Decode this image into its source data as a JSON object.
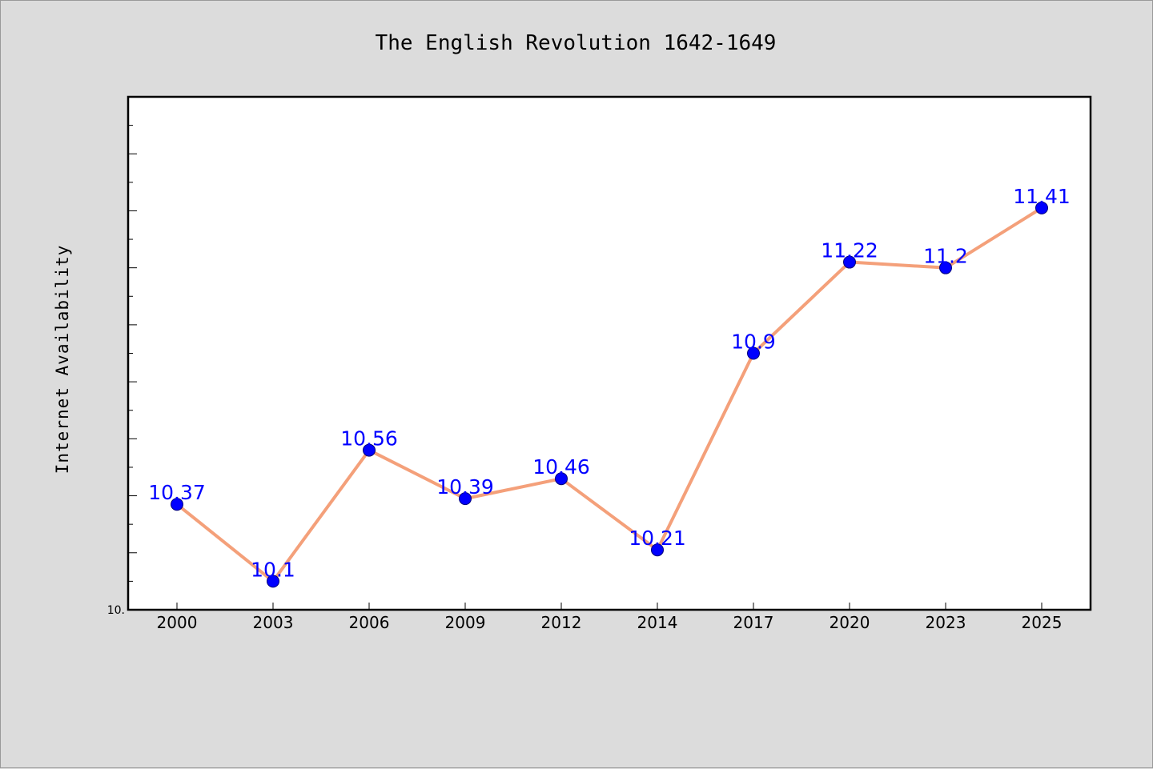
{
  "chart_data": {
    "type": "line",
    "title": "The English Revolution 1642-1649",
    "xlabel": "",
    "ylabel": "Internet Availability",
    "categories": [
      "2000",
      "2003",
      "2006",
      "2009",
      "2012",
      "2014",
      "2017",
      "2020",
      "2023",
      "2025"
    ],
    "series": [
      {
        "values": [
          10.37,
          10.1,
          10.56,
          10.39,
          10.46,
          10.21,
          10.9,
          11.22,
          11.2,
          11.41
        ],
        "data_labels": [
          "10.37",
          "10.1",
          "10.56",
          "10.39",
          "10.46",
          "10.21",
          "10.9",
          "11.22",
          "11.2",
          "11.41"
        ]
      }
    ],
    "ylim": [
      10.0,
      11.8
    ],
    "y_tick_labels": [
      "10."
    ],
    "grid": false,
    "legend": "none",
    "colors": {
      "line": "#f4a07a",
      "marker": "#0000ff",
      "data_label": "#0000ff",
      "plot_background": "#ffffff",
      "figure_background": "#dcdcdc"
    }
  }
}
